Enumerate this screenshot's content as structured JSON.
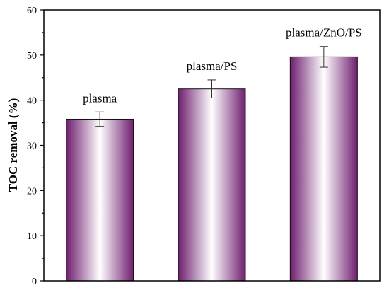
{
  "chart_data": {
    "type": "bar",
    "title": "",
    "xlabel": "",
    "ylabel": "TOC removal (%)",
    "ylim": [
      0,
      60
    ],
    "yticks": [
      0,
      10,
      20,
      30,
      40,
      50,
      60
    ],
    "categories": [
      "plasma",
      "plasma/PS",
      "plasma/ZnO/PS"
    ],
    "values": [
      35.8,
      42.5,
      49.6
    ],
    "errors": [
      1.6,
      2.0,
      2.3
    ],
    "grid": false,
    "legend": "none",
    "bar_color": "#6e1e6e",
    "bar_highlight": "#ffffff"
  }
}
